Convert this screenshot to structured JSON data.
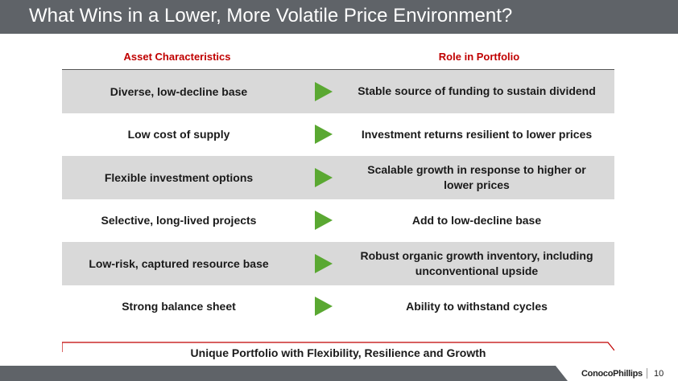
{
  "title": "What Wins in a Lower, More Volatile Price Environment?",
  "headers": {
    "asset": "Asset Characteristics",
    "role": "Role in Portfolio"
  },
  "rows": [
    {
      "asset": "Diverse, low-decline base",
      "role": "Stable source of funding to sustain dividend"
    },
    {
      "asset": "Low cost of supply",
      "role": "Investment returns resilient to lower prices"
    },
    {
      "asset": "Flexible investment options",
      "role": "Scalable growth in response to higher or lower prices"
    },
    {
      "asset": "Selective, long-lived projects",
      "role": "Add to low-decline base"
    },
    {
      "asset": "Low-risk, captured resource base",
      "role": "Robust organic growth inventory, including unconventional upside"
    },
    {
      "asset": "Strong balance sheet",
      "role": "Ability to withstand cycles"
    }
  ],
  "summary": "Unique Portfolio with Flexibility, Resilience and Growth",
  "footer": {
    "logo": "ConocoPhillips",
    "page_number": "10"
  },
  "colors": {
    "title_bar": "#5f6368",
    "header_text": "#c00000",
    "row_shade": "#d9d9d9",
    "arrow": "#5aa832",
    "summary_rule": "#c00000"
  },
  "icons": {
    "arrow": "right-triangle-arrow-icon"
  }
}
